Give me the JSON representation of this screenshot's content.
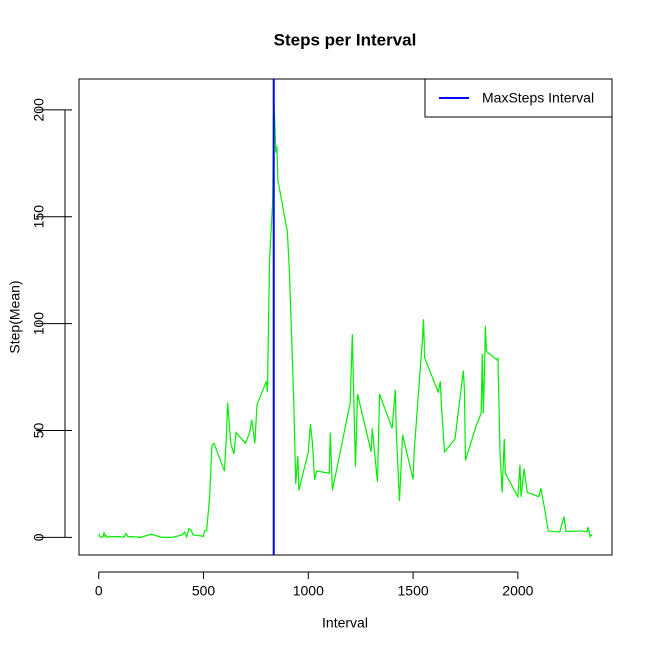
{
  "chart_data": {
    "type": "line",
    "title": "Steps per Interval",
    "x_label": "Interval",
    "y_label": "Step(Mean)",
    "x": [
      0,
      5,
      10,
      15,
      20,
      25,
      30,
      35,
      40,
      50,
      100,
      110,
      120,
      130,
      140,
      150,
      200,
      250,
      300,
      350,
      400,
      410,
      420,
      430,
      440,
      450,
      500,
      505,
      515,
      530,
      540,
      550,
      600,
      610,
      615,
      630,
      645,
      655,
      700,
      720,
      730,
      745,
      755,
      800,
      805,
      815,
      830,
      835,
      840,
      845,
      850,
      855,
      900,
      910,
      915,
      930,
      940,
      950,
      955,
      1000,
      1010,
      1020,
      1030,
      1040,
      1100,
      1105,
      1115,
      1200,
      1210,
      1215,
      1225,
      1235,
      1300,
      1305,
      1330,
      1340,
      1400,
      1415,
      1420,
      1435,
      1450,
      1500,
      1505,
      1545,
      1550,
      1555,
      1620,
      1630,
      1635,
      1650,
      1700,
      1740,
      1745,
      1750,
      1800,
      1825,
      1830,
      1835,
      1840,
      1845,
      1850,
      1900,
      1905,
      1915,
      1925,
      1935,
      1940,
      2000,
      2010,
      2015,
      2030,
      2045,
      2100,
      2110,
      2130,
      2145,
      2200,
      2215,
      2220,
      2230,
      2300,
      2330,
      2335,
      2345,
      2350,
      2355
    ],
    "series": [
      {
        "name": "Step(Mean)",
        "color": "#00ee00",
        "values": [
          1.7,
          0.3,
          0.1,
          0.2,
          0.1,
          2.1,
          0.5,
          0.9,
          0,
          0.3,
          0.4,
          0.2,
          0,
          1.8,
          0.2,
          0.4,
          0,
          1.5,
          0,
          0,
          1.2,
          2.6,
          0.3,
          4.1,
          3.5,
          1.2,
          0.5,
          3.1,
          3.3,
          20,
          43,
          44,
          31,
          49,
          63,
          44,
          39,
          49,
          44,
          49,
          55,
          44,
          62,
          73,
          68,
          130,
          157,
          206,
          195,
          180,
          183,
          167,
          143,
          124,
          109,
          66,
          25,
          38,
          22,
          40,
          53,
          44,
          27,
          31,
          30,
          49,
          22,
          63,
          95,
          73,
          33,
          67,
          40,
          51,
          26,
          67,
          51,
          69,
          49,
          17,
          48,
          27,
          40,
          93,
          102,
          84,
          68,
          73,
          62,
          40,
          46,
          78,
          69,
          36,
          52,
          58,
          86,
          58,
          75,
          99,
          87,
          83,
          84,
          39,
          21,
          46,
          30,
          19,
          34,
          19,
          32,
          21,
          19,
          23,
          12,
          3,
          2.5,
          8,
          9.7,
          2.7,
          3,
          2.6,
          4.7,
          0.3,
          1.1,
          0.9
        ]
      }
    ],
    "vline": {
      "name": "MaxSteps Interval",
      "value": 835,
      "color": "#0000ff"
    },
    "legend": "top-right",
    "xlim": [
      -94.2,
      2449.2
    ],
    "ylim": [
      -8.25,
      214.42
    ],
    "xticks": [
      0,
      500,
      1000,
      1500,
      2000
    ],
    "yticks": [
      0,
      50,
      100,
      150,
      200
    ]
  }
}
